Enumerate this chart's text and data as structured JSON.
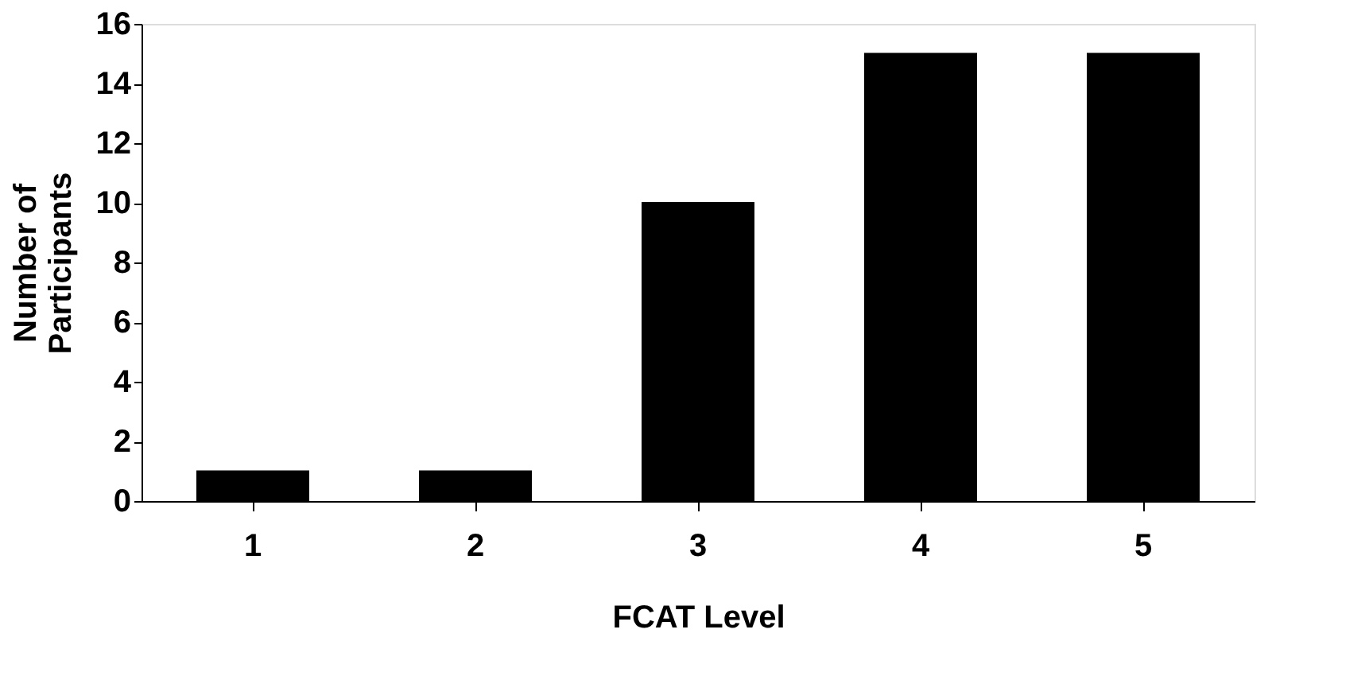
{
  "chart_data": {
    "type": "bar",
    "xlabel": "FCAT Level",
    "ylabel": "Number of Participants",
    "categories": [
      "1",
      "2",
      "3",
      "4",
      "5"
    ],
    "values": [
      1,
      1,
      10,
      15,
      15
    ],
    "color": "#000000",
    "ylim": [
      0,
      16
    ],
    "yticks": [
      0,
      2,
      4,
      6,
      8,
      10,
      12,
      14,
      16
    ],
    "grid": false
  }
}
